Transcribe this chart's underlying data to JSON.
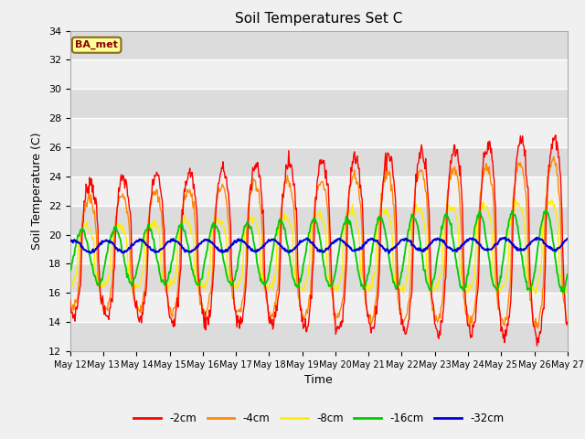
{
  "title": "Soil Temperatures Set C",
  "xlabel": "Time",
  "ylabel": "Soil Temperature (C)",
  "ylim": [
    12,
    34
  ],
  "yticks": [
    12,
    14,
    16,
    18,
    20,
    22,
    24,
    26,
    28,
    30,
    32,
    34
  ],
  "colors": {
    "-2cm": "#ff0000",
    "-4cm": "#ff8800",
    "-8cm": "#ffee00",
    "-16cm": "#00cc00",
    "-32cm": "#0000dd"
  },
  "legend_labels": [
    "-2cm",
    "-4cm",
    "-8cm",
    "-16cm",
    "-32cm"
  ],
  "annotation_label": "BA_met",
  "background_color": "#f0f0f0",
  "plot_bg_color": "#f0f0f0",
  "band_color_light": "#dcdcdc",
  "band_color_dark": "#f0f0f0",
  "figsize": [
    6.4,
    4.8
  ],
  "dpi": 100,
  "start_day": 12,
  "end_day": 27,
  "points_per_day": 48
}
